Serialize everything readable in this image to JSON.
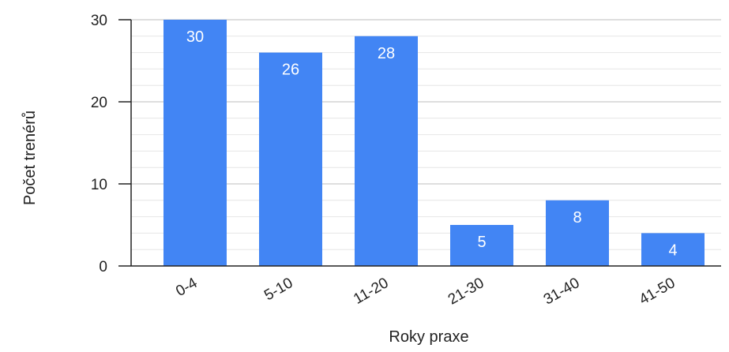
{
  "chart_data": {
    "type": "bar",
    "categories": [
      "0-4",
      "5-10",
      "11-20",
      "21-30",
      "31-40",
      "41-50"
    ],
    "values": [
      30,
      26,
      28,
      5,
      8,
      4
    ],
    "xlabel": "Roky praxe",
    "ylabel": "Počet trenérů",
    "ylim": [
      0,
      30
    ],
    "yticks": [
      0,
      10,
      20,
      30
    ],
    "grid": true,
    "bar_color": "#4285F4"
  }
}
